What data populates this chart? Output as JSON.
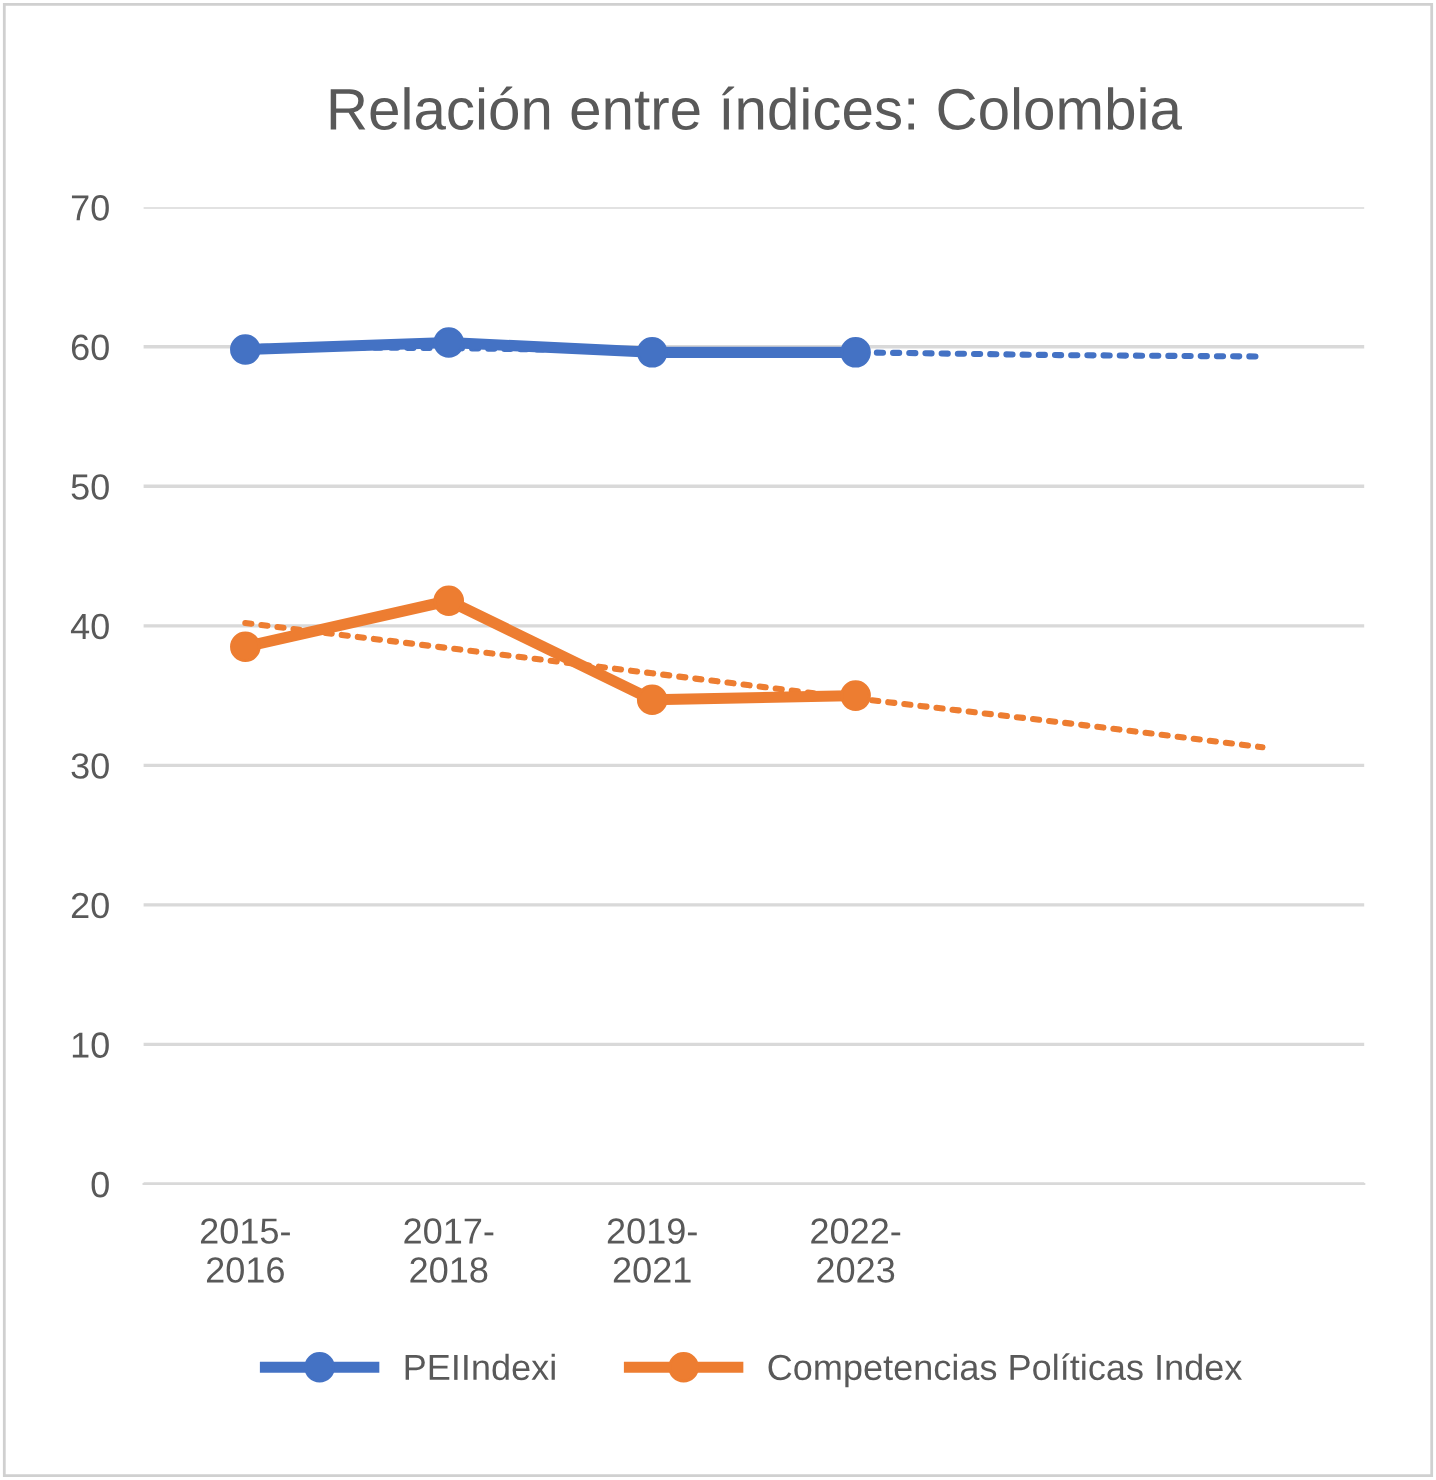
{
  "chart_data": {
    "type": "line",
    "title": "Relación entre índices: Colombia",
    "categories": [
      "2015-\n2016",
      "2017-\n2018",
      "2019-\n2021",
      "2022-\n2023",
      null,
      null
    ],
    "series": [
      {
        "name": "PEIIndexi",
        "color": "#4472c4",
        "values": [
          59.8,
          60.3,
          59.6,
          59.6,
          null,
          null
        ],
        "marker": "circle",
        "line_style": "solid"
      },
      {
        "name": "Competencias Políticas Index",
        "color": "#ed7d31",
        "values": [
          38.5,
          41.8,
          34.7,
          35.0,
          null,
          null
        ],
        "marker": "circle",
        "line_style": "solid"
      },
      {
        "color": "#4472c4",
        "values": [
          60.0,
          59.9,
          59.7,
          59.6,
          59.4,
          59.3
        ],
        "marker": "none",
        "line_style": "dotted"
      },
      {
        "color": "#ed7d31",
        "values": [
          40.2,
          38.4,
          36.6,
          34.8,
          33.1,
          31.3
        ],
        "marker": "none",
        "line_style": "dotted"
      }
    ],
    "ylim": [
      0,
      70
    ],
    "yticks": [
      0,
      10,
      20,
      30,
      40,
      50,
      60,
      70
    ],
    "grid": "y",
    "legend": "bottom"
  }
}
